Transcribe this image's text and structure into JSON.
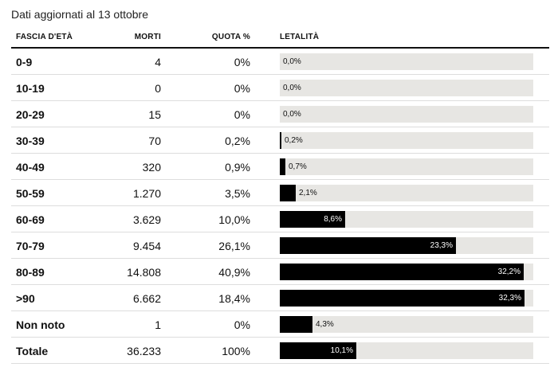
{
  "subtitle": "Dati aggiornati al 13 ottobre",
  "columns": {
    "age": "FASCIA D'ETÀ",
    "deaths": "MORTI",
    "share": "QUOTA %",
    "lethality": "LETALITÀ"
  },
  "chart_data": {
    "type": "table",
    "title": "",
    "subtitle": "Dati aggiornati al 13 ottobre",
    "columns": [
      "FASCIA D'ETÀ",
      "MORTI",
      "QUOTA %",
      "LETALITÀ"
    ],
    "bar_column": "LETALITÀ",
    "bar_max": 33.5,
    "rows": [
      {
        "age": "0-9",
        "deaths": "4",
        "share": "0%",
        "lethality": 0.0,
        "lethality_label": "0,0%",
        "bold": true
      },
      {
        "age": "10-19",
        "deaths": "0",
        "share": "0%",
        "lethality": 0.0,
        "lethality_label": "0,0%",
        "bold": true
      },
      {
        "age": "20-29",
        "deaths": "15",
        "share": "0%",
        "lethality": 0.0,
        "lethality_label": "0,0%",
        "bold": true
      },
      {
        "age": "30-39",
        "deaths": "70",
        "share": "0,2%",
        "lethality": 0.2,
        "lethality_label": "0,2%",
        "bold": true
      },
      {
        "age": "40-49",
        "deaths": "320",
        "share": "0,9%",
        "lethality": 0.7,
        "lethality_label": "0,7%",
        "bold": true
      },
      {
        "age": "50-59",
        "deaths": "1.270",
        "share": "3,5%",
        "lethality": 2.1,
        "lethality_label": "2,1%",
        "bold": true
      },
      {
        "age": "60-69",
        "deaths": "3.629",
        "share": "10,0%",
        "lethality": 8.6,
        "lethality_label": "8,6%",
        "bold": true
      },
      {
        "age": "70-79",
        "deaths": "9.454",
        "share": "26,1%",
        "lethality": 23.3,
        "lethality_label": "23,3%",
        "bold": true
      },
      {
        "age": "80-89",
        "deaths": "14.808",
        "share": "40,9%",
        "lethality": 32.2,
        "lethality_label": "32,2%",
        "bold": true
      },
      {
        "age": ">90",
        "deaths": "6.662",
        "share": "18,4%",
        "lethality": 32.3,
        "lethality_label": "32,3%",
        "bold": true
      },
      {
        "age": "Non noto",
        "deaths": "1",
        "share": "0%",
        "lethality": 4.3,
        "lethality_label": "4,3%",
        "bold": true
      },
      {
        "age": "Totale",
        "deaths": "36.233",
        "share": "100%",
        "lethality": 10.1,
        "lethality_label": "10,1%",
        "bold": true
      }
    ]
  }
}
